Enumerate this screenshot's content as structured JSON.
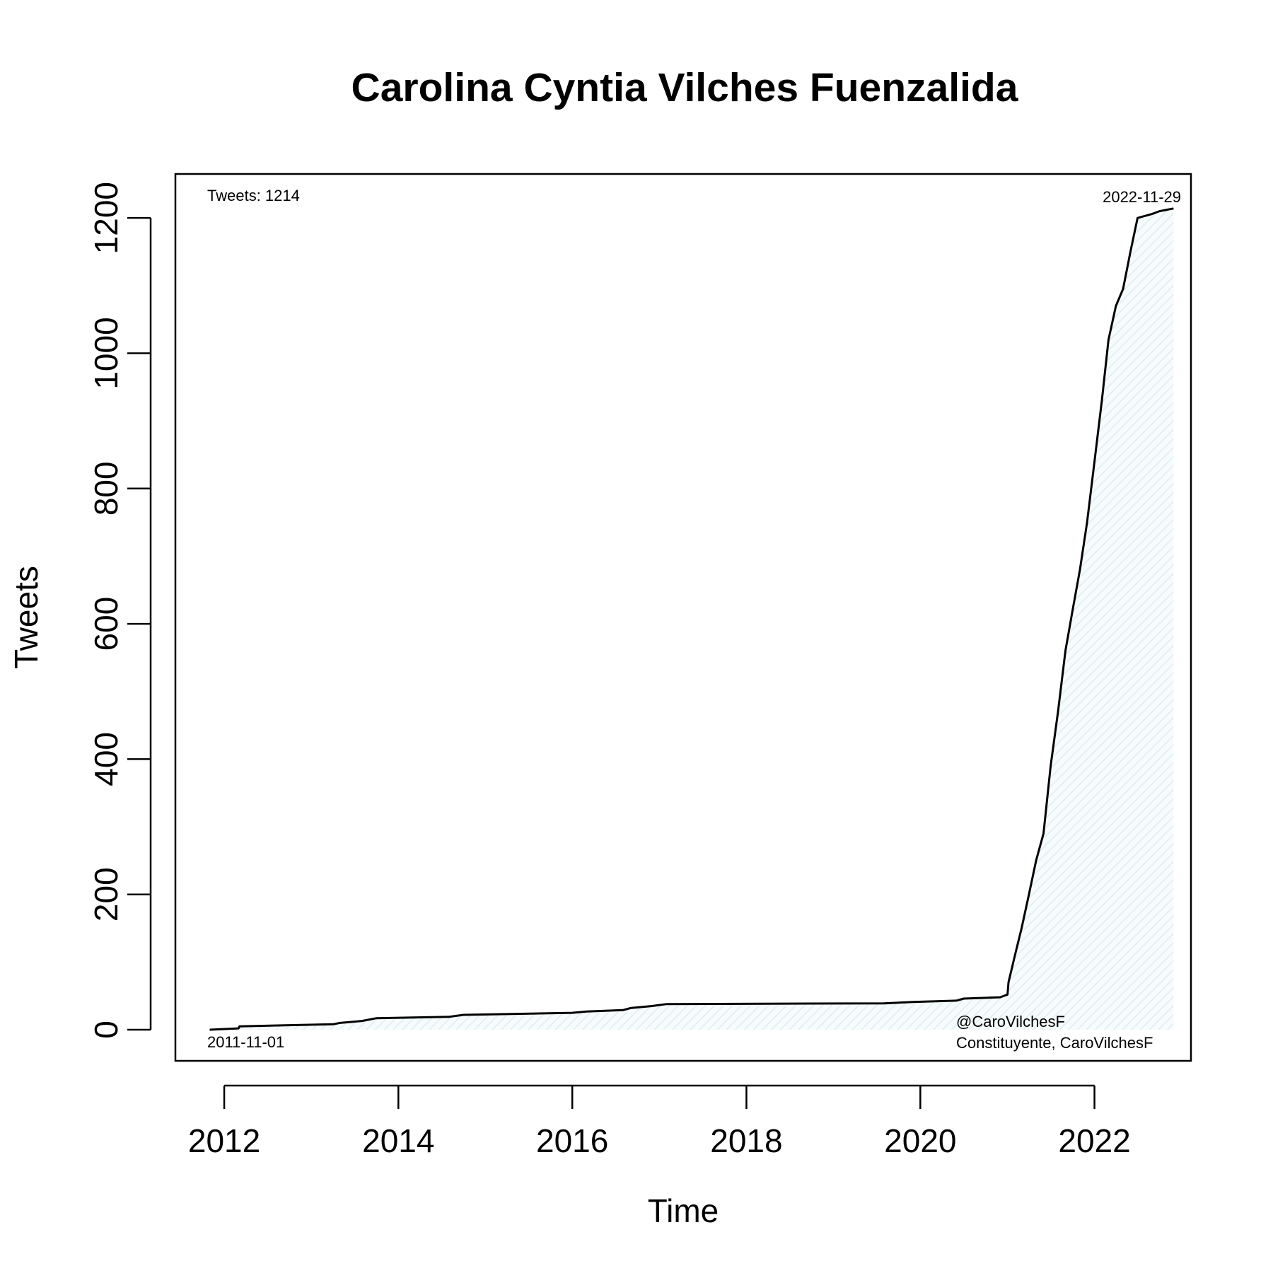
{
  "chart_data": {
    "type": "line",
    "title": "Carolina Cyntia Vilches Fuenzalida",
    "xlabel": "Time",
    "ylabel": "Tweets",
    "xlim": [
      "2011-06-10",
      "2023-02-10"
    ],
    "ylim": [
      -46,
      1265
    ],
    "x_ticks": [
      "2012",
      "2014",
      "2016",
      "2018",
      "2020",
      "2022"
    ],
    "y_ticks": [
      "0",
      "200",
      "400",
      "600",
      "800",
      "1000",
      "1200"
    ],
    "fill": "hatched area under curve",
    "colors": {
      "line": "#000000",
      "fill_hatch": "#dceef3"
    },
    "annotations": {
      "top_left": "Tweets: 1214",
      "top_right": "2022-11-29",
      "bottom_left": "2011-11-01",
      "bottom_right_line1": "@CaroVilchesF",
      "bottom_right_line2": "Constituyente, CaroVilchesF"
    },
    "series": [
      {
        "x": [
          "2011-11-01",
          "2012-03-01",
          "2012-03-05",
          "2013-04-01",
          "2013-05-01",
          "2013-08-01",
          "2013-10-01",
          "2014-08-01",
          "2014-10-01",
          "2016-01-01",
          "2016-03-01",
          "2016-08-01",
          "2016-09-01",
          "2016-12-01",
          "2017-02-01",
          "2019-08-01",
          "2019-12-01",
          "2020-06-01",
          "2020-07-01",
          "2020-12-01",
          "2021-01-01",
          "2021-01-05",
          "2021-02-01",
          "2021-03-01",
          "2021-04-01",
          "2021-05-01",
          "2021-06-01",
          "2021-07-01",
          "2021-08-01",
          "2021-09-01",
          "2021-10-01",
          "2021-11-01",
          "2021-12-01",
          "2022-01-01",
          "2022-02-01",
          "2022-03-01",
          "2022-04-01",
          "2022-05-01",
          "2022-06-01",
          "2022-07-01",
          "2022-08-01",
          "2022-09-01",
          "2022-10-01",
          "2022-11-29"
        ],
        "y": [
          0,
          2,
          5,
          8,
          10,
          13,
          17,
          19,
          22,
          25,
          27,
          29,
          32,
          35,
          38,
          39,
          41,
          43,
          46,
          48,
          52,
          70,
          110,
          150,
          200,
          250,
          290,
          390,
          470,
          560,
          620,
          680,
          750,
          840,
          930,
          1020,
          1070,
          1095,
          1150,
          1200,
          1203,
          1206,
          1210,
          1214
        ]
      }
    ]
  }
}
